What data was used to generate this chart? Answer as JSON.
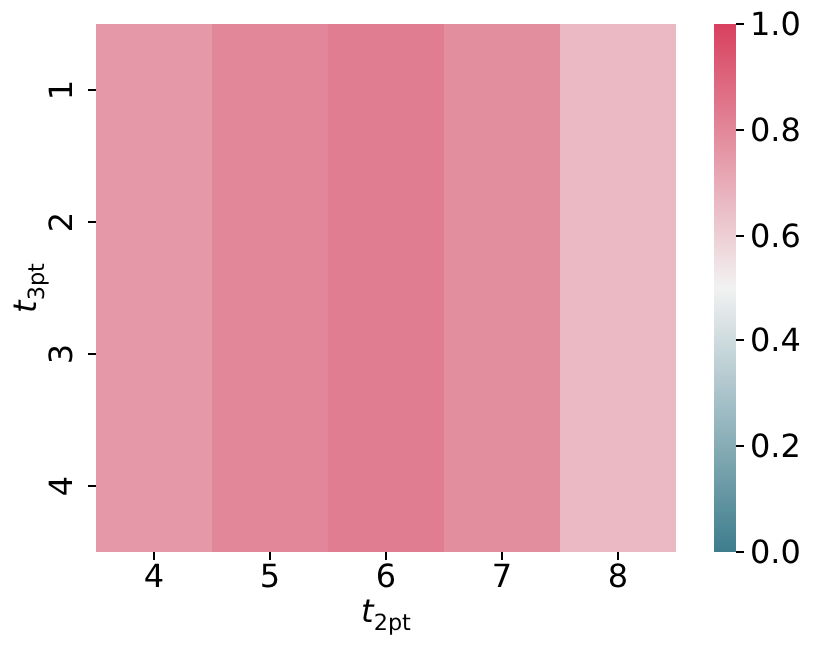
{
  "chart_data": {
    "type": "heatmap",
    "xlabel": "t$_{2pt}$",
    "ylabel": "t$_{3pt}$",
    "categories": [
      "4",
      "5",
      "6",
      "7",
      "8"
    ],
    "y_categories": [
      "1",
      "2",
      "3",
      "4"
    ],
    "cells": [
      [
        0.75,
        0.8,
        0.83,
        0.78,
        0.66
      ],
      [
        0.75,
        0.8,
        0.83,
        0.78,
        0.66
      ],
      [
        0.75,
        0.8,
        0.83,
        0.78,
        0.66
      ],
      [
        0.75,
        0.8,
        0.83,
        0.78,
        0.66
      ]
    ],
    "clim": [
      0,
      1
    ],
    "cticks": [
      {
        "value": 0,
        "label": "0.0"
      },
      0.2,
      0.4,
      0.6,
      0.8,
      {
        "value": 1,
        "label": "1.0"
      }
    ]
  }
}
